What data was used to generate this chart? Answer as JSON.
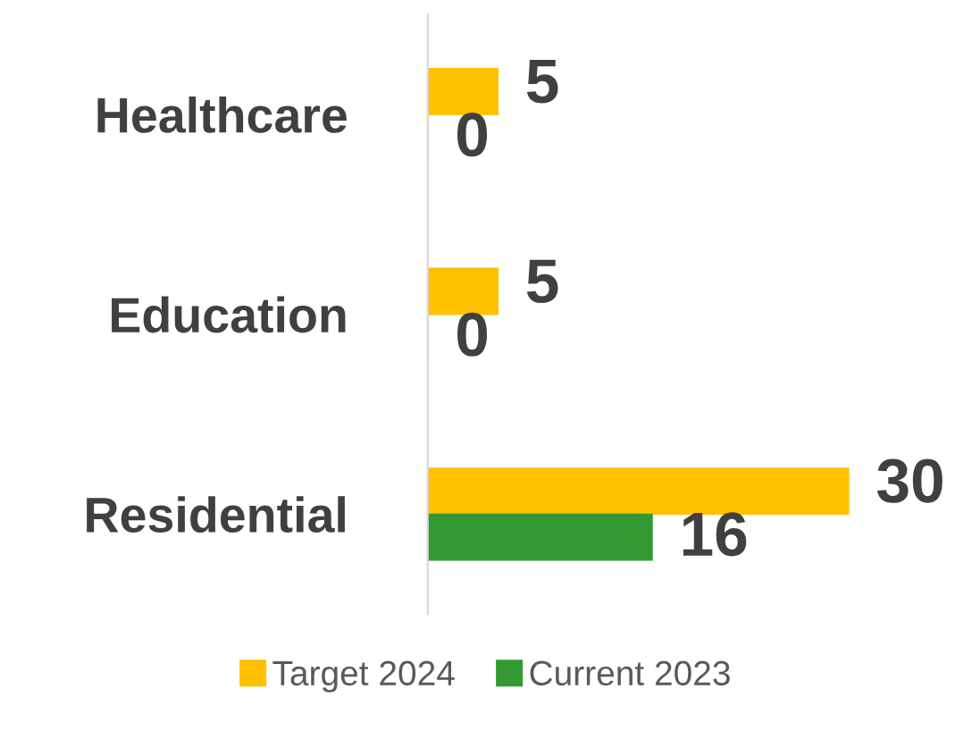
{
  "chart_data": {
    "type": "bar",
    "orientation": "horizontal",
    "categories": [
      "Healthcare",
      "Education",
      "Residential"
    ],
    "series": [
      {
        "name": "Target 2024",
        "color": "#ffc000",
        "values": [
          5,
          5,
          30
        ]
      },
      {
        "name": "Current 2023",
        "color": "#339933",
        "values": [
          0,
          0,
          16
        ]
      }
    ],
    "data_labels": true,
    "legend": "bottom",
    "grid": false
  }
}
